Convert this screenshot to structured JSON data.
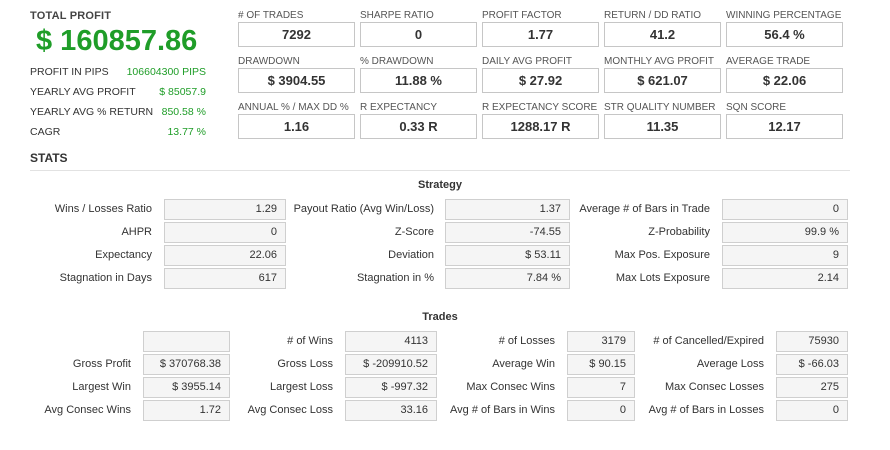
{
  "total_profit": {
    "label": "TOTAL PROFIT",
    "value": "$ 160857.86"
  },
  "summary": [
    {
      "label": "PROFIT IN PIPS",
      "value": "106604300 PIPS"
    },
    {
      "label": "YEARLY AVG PROFIT",
      "value": "$ 85057.9"
    },
    {
      "label": "YEARLY AVG % RETURN",
      "value": "850.58 %"
    },
    {
      "label": "CAGR",
      "value": "13.77 %"
    }
  ],
  "metrics": [
    {
      "label": "# OF TRADES",
      "value": "7292"
    },
    {
      "label": "SHARPE RATIO",
      "value": "0"
    },
    {
      "label": "PROFIT FACTOR",
      "value": "1.77"
    },
    {
      "label": "RETURN / DD RATIO",
      "value": "41.2"
    },
    {
      "label": "WINNING PERCENTAGE",
      "value": "56.4 %"
    },
    {
      "label": "DRAWDOWN",
      "value": "$ 3904.55"
    },
    {
      "label": "% DRAWDOWN",
      "value": "11.88 %"
    },
    {
      "label": "DAILY AVG PROFIT",
      "value": "$ 27.92"
    },
    {
      "label": "MONTHLY AVG PROFIT",
      "value": "$ 621.07"
    },
    {
      "label": "AVERAGE TRADE",
      "value": "$ 22.06"
    },
    {
      "label": "ANNUAL % / MAX DD %",
      "value": "1.16"
    },
    {
      "label": "R EXPECTANCY",
      "value": "0.33 R"
    },
    {
      "label": "R EXPECTANCY SCORE",
      "value": "1288.17 R"
    },
    {
      "label": "STR QUALITY NUMBER",
      "value": "11.35"
    },
    {
      "label": "SQN SCORE",
      "value": "12.17"
    }
  ],
  "stats_title": "STATS",
  "strategy": {
    "title": "Strategy",
    "rows": [
      [
        {
          "label": "Wins / Losses Ratio",
          "value": "1.29"
        },
        {
          "label": "Payout Ratio (Avg Win/Loss)",
          "value": "1.37"
        },
        {
          "label": "Average # of Bars in Trade",
          "value": "0"
        }
      ],
      [
        {
          "label": "AHPR",
          "value": "0"
        },
        {
          "label": "Z-Score",
          "value": "-74.55"
        },
        {
          "label": "Z-Probability",
          "value": "99.9 %"
        }
      ],
      [
        {
          "label": "Expectancy",
          "value": "22.06"
        },
        {
          "label": "Deviation",
          "value": "$ 53.11"
        },
        {
          "label": "Max Pos. Exposure",
          "value": "9"
        }
      ],
      [
        {
          "label": "Stagnation in Days",
          "value": "617"
        },
        {
          "label": "Stagnation in %",
          "value": "7.84 %"
        },
        {
          "label": "Max Lots Exposure",
          "value": "2.14"
        }
      ]
    ]
  },
  "trades": {
    "title": "Trades",
    "rows": [
      [
        {
          "label": "",
          "value": ""
        },
        {
          "label": "# of Wins",
          "value": "4113"
        },
        {
          "label": "# of Losses",
          "value": "3179"
        },
        {
          "label": "# of Cancelled/Expired",
          "value": "75930"
        }
      ],
      [
        {
          "label": "Gross Profit",
          "value": "$ 370768.38"
        },
        {
          "label": "Gross Loss",
          "value": "$ -209910.52"
        },
        {
          "label": "Average Win",
          "value": "$ 90.15"
        },
        {
          "label": "Average Loss",
          "value": "$ -66.03"
        }
      ],
      [
        {
          "label": "Largest Win",
          "value": "$ 3955.14"
        },
        {
          "label": "Largest Loss",
          "value": "$ -997.32"
        },
        {
          "label": "Max Consec Wins",
          "value": "7"
        },
        {
          "label": "Max Consec Losses",
          "value": "275"
        }
      ],
      [
        {
          "label": "Avg Consec Wins",
          "value": "1.72"
        },
        {
          "label": "Avg Consec Loss",
          "value": "33.16"
        },
        {
          "label": "Avg # of Bars in Wins",
          "value": "0"
        },
        {
          "label": "Avg # of Bars in Losses",
          "value": "0"
        }
      ]
    ]
  },
  "colors": {
    "profit_green": "#1f9d28",
    "box_border": "#c6c6c6",
    "stat_box_bg": "#f5f5f5"
  }
}
